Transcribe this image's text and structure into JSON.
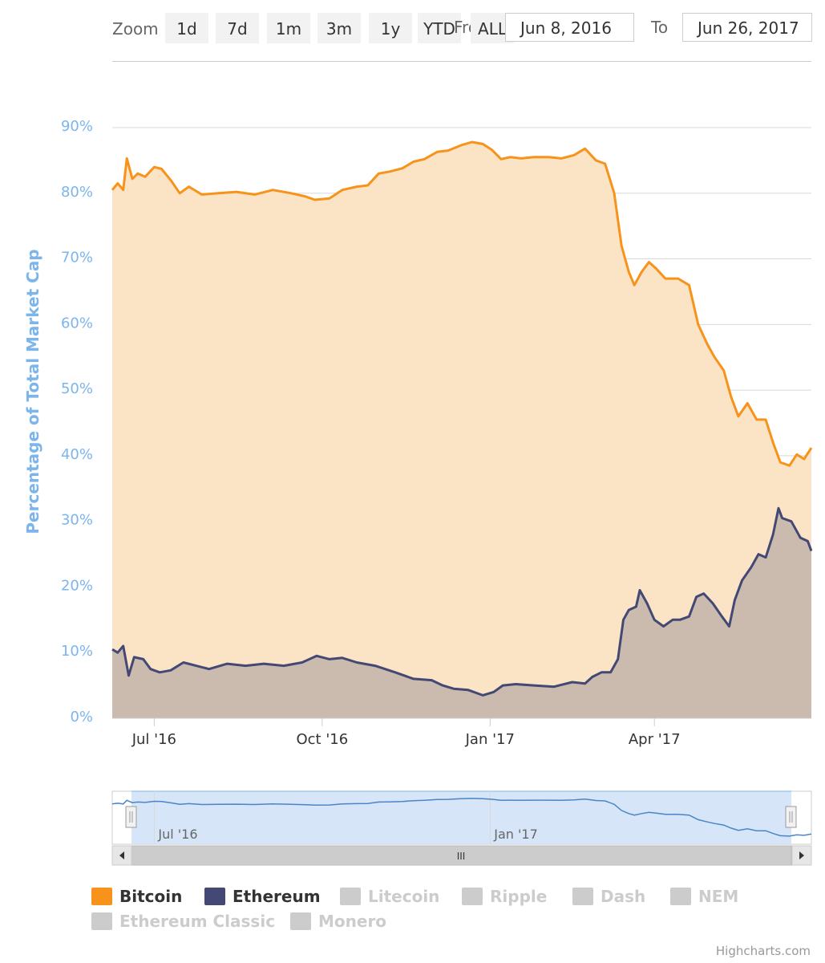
{
  "zoom": {
    "label": "Zoom",
    "buttons": [
      "1d",
      "7d",
      "1m",
      "3m",
      "1y",
      "YTD",
      "ALL"
    ],
    "from_label": "From",
    "from_value": "Jun 8, 2016",
    "to_label": "To",
    "to_value": "Jun 26, 2017"
  },
  "navigator": {
    "tick_labels": [
      "Jul '16",
      "Jan '17"
    ],
    "scrollbar_grip": "III"
  },
  "legend": [
    {
      "name": "Bitcoin",
      "color": "#f7931a",
      "active": true
    },
    {
      "name": "Ethereum",
      "color": "#434874",
      "active": true
    },
    {
      "name": "Litecoin",
      "color": "#cccccc",
      "active": false
    },
    {
      "name": "Ripple",
      "color": "#cccccc",
      "active": false
    },
    {
      "name": "Dash",
      "color": "#cccccc",
      "active": false
    },
    {
      "name": "NEM",
      "color": "#cccccc",
      "active": false
    },
    {
      "name": "Ethereum Classic",
      "color": "#cccccc",
      "active": false
    },
    {
      "name": "Monero",
      "color": "#cccccc",
      "active": false
    }
  ],
  "credits": "Highcharts.com",
  "chart_data": {
    "type": "area",
    "title": "",
    "ylabel": "Percentage of Total Market Cap",
    "xlabel": "",
    "ylim": [
      0,
      90
    ],
    "y_ticks": [
      0,
      10,
      20,
      30,
      40,
      50,
      60,
      70,
      80,
      90
    ],
    "y_tick_suffix": "%",
    "xlim": [
      "2016-06-08",
      "2017-06-26"
    ],
    "x_ticks": [
      {
        "date": "2016-07-01",
        "label": "Jul '16"
      },
      {
        "date": "2016-10-01",
        "label": "Oct '16"
      },
      {
        "date": "2017-01-01",
        "label": "Jan '17"
      },
      {
        "date": "2017-04-01",
        "label": "Apr '17"
      }
    ],
    "grid": true,
    "legend_position": "bottom-left",
    "colors": {
      "Bitcoin": "#f7931a",
      "Ethereum": "#434874"
    },
    "series": [
      {
        "name": "Bitcoin",
        "points": [
          [
            "2016-06-08",
            80.5
          ],
          [
            "2016-06-11",
            81.5
          ],
          [
            "2016-06-14",
            80.5
          ],
          [
            "2016-06-16",
            85.3
          ],
          [
            "2016-06-19",
            82.2
          ],
          [
            "2016-06-22",
            83.0
          ],
          [
            "2016-06-26",
            82.5
          ],
          [
            "2016-07-01",
            84.0
          ],
          [
            "2016-07-05",
            83.7
          ],
          [
            "2016-07-10",
            82.0
          ],
          [
            "2016-07-15",
            80.0
          ],
          [
            "2016-07-20",
            81.0
          ],
          [
            "2016-07-27",
            79.8
          ],
          [
            "2016-08-05",
            80.0
          ],
          [
            "2016-08-15",
            80.2
          ],
          [
            "2016-08-25",
            79.8
          ],
          [
            "2016-09-04",
            80.5
          ],
          [
            "2016-09-14",
            80.0
          ],
          [
            "2016-09-22",
            79.5
          ],
          [
            "2016-09-27",
            79.0
          ],
          [
            "2016-10-05",
            79.2
          ],
          [
            "2016-10-12",
            80.5
          ],
          [
            "2016-10-20",
            81.0
          ],
          [
            "2016-10-26",
            81.2
          ],
          [
            "2016-11-01",
            83.0
          ],
          [
            "2016-11-07",
            83.3
          ],
          [
            "2016-11-14",
            83.8
          ],
          [
            "2016-11-20",
            84.8
          ],
          [
            "2016-11-26",
            85.2
          ],
          [
            "2016-12-03",
            86.3
          ],
          [
            "2016-12-09",
            86.5
          ],
          [
            "2016-12-16",
            87.3
          ],
          [
            "2016-12-22",
            87.8
          ],
          [
            "2016-12-28",
            87.5
          ],
          [
            "2017-01-02",
            86.6
          ],
          [
            "2017-01-07",
            85.2
          ],
          [
            "2017-01-12",
            85.5
          ],
          [
            "2017-01-18",
            85.3
          ],
          [
            "2017-01-25",
            85.5
          ],
          [
            "2017-02-02",
            85.5
          ],
          [
            "2017-02-09",
            85.3
          ],
          [
            "2017-02-16",
            85.8
          ],
          [
            "2017-02-22",
            86.8
          ],
          [
            "2017-02-28",
            85.0
          ],
          [
            "2017-03-05",
            84.5
          ],
          [
            "2017-03-10",
            80.0
          ],
          [
            "2017-03-14",
            72.0
          ],
          [
            "2017-03-18",
            68.0
          ],
          [
            "2017-03-21",
            66.0
          ],
          [
            "2017-03-25",
            68.0
          ],
          [
            "2017-03-29",
            69.5
          ],
          [
            "2017-04-02",
            68.5
          ],
          [
            "2017-04-07",
            67.0
          ],
          [
            "2017-04-14",
            67.0
          ],
          [
            "2017-04-20",
            66.0
          ],
          [
            "2017-04-25",
            60.0
          ],
          [
            "2017-04-30",
            57.0
          ],
          [
            "2017-05-04",
            55.0
          ],
          [
            "2017-05-09",
            53.0
          ],
          [
            "2017-05-13",
            49.0
          ],
          [
            "2017-05-17",
            46.0
          ],
          [
            "2017-05-22",
            48.0
          ],
          [
            "2017-05-27",
            45.5
          ],
          [
            "2017-06-01",
            45.5
          ],
          [
            "2017-06-05",
            42.0
          ],
          [
            "2017-06-09",
            39.0
          ],
          [
            "2017-06-14",
            38.5
          ],
          [
            "2017-06-18",
            40.2
          ],
          [
            "2017-06-22",
            39.5
          ],
          [
            "2017-06-26",
            41.2
          ]
        ]
      },
      {
        "name": "Ethereum",
        "points": [
          [
            "2016-06-08",
            10.5
          ],
          [
            "2016-06-11",
            10.0
          ],
          [
            "2016-06-14",
            11.0
          ],
          [
            "2016-06-17",
            6.5
          ],
          [
            "2016-06-20",
            9.3
          ],
          [
            "2016-06-25",
            9.0
          ],
          [
            "2016-06-29",
            7.5
          ],
          [
            "2016-07-04",
            7.0
          ],
          [
            "2016-07-10",
            7.3
          ],
          [
            "2016-07-17",
            8.5
          ],
          [
            "2016-07-24",
            8.0
          ],
          [
            "2016-07-31",
            7.5
          ],
          [
            "2016-08-10",
            8.3
          ],
          [
            "2016-08-20",
            8.0
          ],
          [
            "2016-08-30",
            8.3
          ],
          [
            "2016-09-10",
            8.0
          ],
          [
            "2016-09-20",
            8.5
          ],
          [
            "2016-09-28",
            9.5
          ],
          [
            "2016-10-05",
            9.0
          ],
          [
            "2016-10-12",
            9.2
          ],
          [
            "2016-10-20",
            8.5
          ],
          [
            "2016-10-30",
            8.0
          ],
          [
            "2016-11-10",
            7.0
          ],
          [
            "2016-11-20",
            6.0
          ],
          [
            "2016-11-30",
            5.8
          ],
          [
            "2016-12-06",
            5.0
          ],
          [
            "2016-12-12",
            4.5
          ],
          [
            "2016-12-20",
            4.3
          ],
          [
            "2016-12-28",
            3.5
          ],
          [
            "2017-01-03",
            4.0
          ],
          [
            "2017-01-08",
            5.0
          ],
          [
            "2017-01-15",
            5.2
          ],
          [
            "2017-01-25",
            5.0
          ],
          [
            "2017-02-05",
            4.8
          ],
          [
            "2017-02-15",
            5.5
          ],
          [
            "2017-02-22",
            5.3
          ],
          [
            "2017-02-26",
            6.3
          ],
          [
            "2017-03-03",
            7.0
          ],
          [
            "2017-03-08",
            7.0
          ],
          [
            "2017-03-12",
            9.0
          ],
          [
            "2017-03-15",
            15.0
          ],
          [
            "2017-03-18",
            16.5
          ],
          [
            "2017-03-22",
            17.0
          ],
          [
            "2017-03-24",
            19.5
          ],
          [
            "2017-03-28",
            17.5
          ],
          [
            "2017-04-01",
            15.0
          ],
          [
            "2017-04-06",
            14.0
          ],
          [
            "2017-04-11",
            15.0
          ],
          [
            "2017-04-15",
            15.0
          ],
          [
            "2017-04-20",
            15.5
          ],
          [
            "2017-04-24",
            18.5
          ],
          [
            "2017-04-28",
            19.0
          ],
          [
            "2017-05-03",
            17.5
          ],
          [
            "2017-05-08",
            15.5
          ],
          [
            "2017-05-12",
            14.0
          ],
          [
            "2017-05-15",
            18.0
          ],
          [
            "2017-05-19",
            21.0
          ],
          [
            "2017-05-24",
            23.0
          ],
          [
            "2017-05-28",
            25.0
          ],
          [
            "2017-06-01",
            24.5
          ],
          [
            "2017-06-05",
            28.0
          ],
          [
            "2017-06-08",
            32.0
          ],
          [
            "2017-06-10",
            30.5
          ],
          [
            "2017-06-15",
            30.0
          ],
          [
            "2017-06-20",
            27.5
          ],
          [
            "2017-06-24",
            27.0
          ],
          [
            "2017-06-26",
            25.5
          ]
        ]
      }
    ]
  }
}
